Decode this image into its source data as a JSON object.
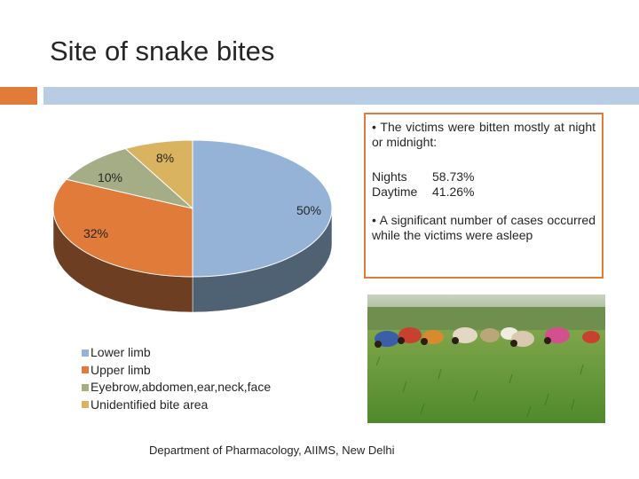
{
  "title": "Site of snake bites",
  "colors": {
    "accent_orange": "#e07b39",
    "accent_blue": "#b8cce4"
  },
  "chart_data": {
    "type": "pie",
    "style": "3d",
    "title": "",
    "slices": [
      {
        "label": "Lower limb",
        "value": 50,
        "display": "50%",
        "color": "#95b3d7",
        "side": "#4f6273"
      },
      {
        "label": "Upper limb",
        "value": 32,
        "display": "32%",
        "color": "#e07b39",
        "side": "#6e3e22"
      },
      {
        "label": "Eyebrow,abdomen,ear,neck,face",
        "value": 10,
        "display": "10%",
        "color": "#a5ad87",
        "side": "#5f6648"
      },
      {
        "label": "Unidentified bite area",
        "value": 8,
        "display": "8%",
        "color": "#d9b35f",
        "side": "#8a6d30"
      }
    ],
    "legend_position": "bottom-left"
  },
  "callout": {
    "point1": "• The victims were bitten mostly at night or midnight:",
    "stats": [
      {
        "label": "Nights",
        "value": "58.73%"
      },
      {
        "label": "Daytime",
        "value": "41.26%"
      }
    ],
    "point2": "• A significant number of cases occurred while the victims were asleep"
  },
  "photo_icon": "field-workers-photo",
  "footer": "Department of Pharmacology, AIIMS, New Delhi"
}
